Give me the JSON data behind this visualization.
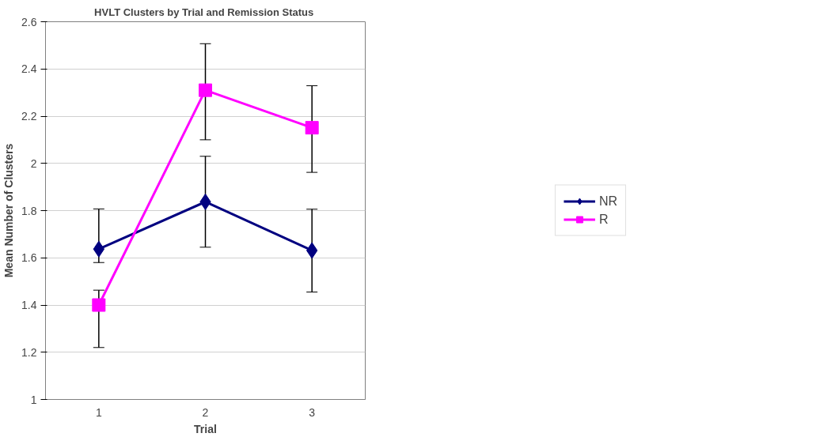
{
  "chart_data": {
    "type": "line",
    "title": "HVLT Clusters  by Trial and Remission Status",
    "xlabel": "Trial",
    "ylabel": "Mean Number of Clusters",
    "categories": [
      "1",
      "2",
      "3"
    ],
    "series": [
      {
        "name": "NR",
        "color": "#000080",
        "marker": "diamond",
        "values": [
          1.637,
          1.837,
          1.631
        ],
        "errors": [
          [
            1.58,
            1.807
          ],
          [
            1.645,
            2.03
          ],
          [
            1.455,
            1.806
          ]
        ]
      },
      {
        "name": "R",
        "color": "#ff00ff",
        "marker": "square",
        "values": [
          1.4,
          2.31,
          2.151
        ],
        "errors": [
          [
            1.22,
            1.463
          ],
          [
            2.1,
            2.507
          ],
          [
            1.962,
            2.329
          ]
        ]
      }
    ],
    "ylim": [
      1,
      2.6
    ],
    "yticks": [
      1,
      1.2,
      1.4,
      1.6,
      1.8,
      2,
      2.2,
      2.4,
      2.6
    ],
    "grid": "y",
    "legend": "right",
    "line_style": "solid"
  }
}
